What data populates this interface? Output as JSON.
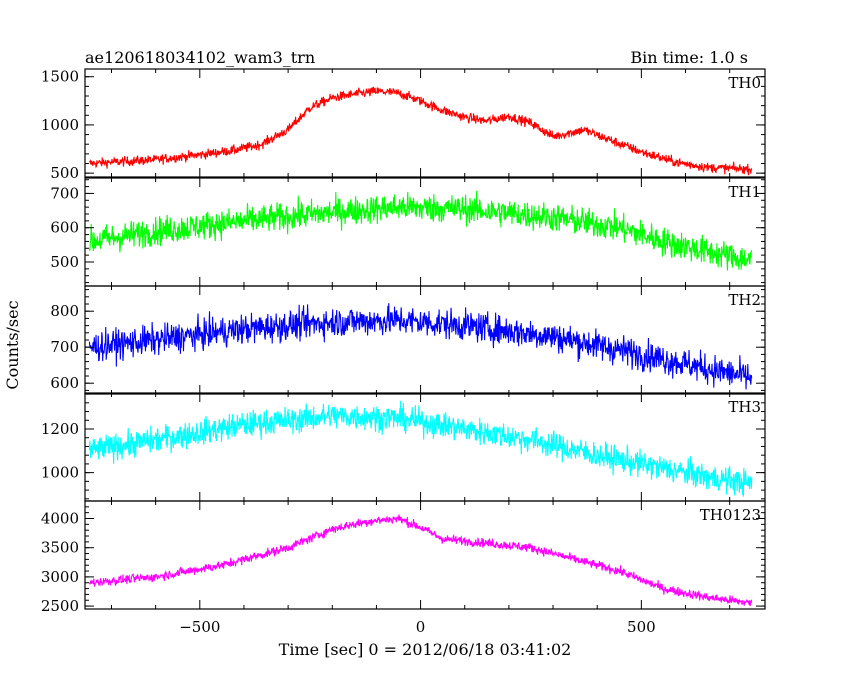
{
  "header": {
    "title": "ae120618034102_wam3_trn",
    "bin_time": "Bin time: 1.0 s"
  },
  "axes": {
    "xlabel": "Time [sec] 0 = 2012/06/18 03:41:02",
    "ylabel": "Counts/sec"
  },
  "chart_data": {
    "type": "line",
    "title": "ae120618034102_wam3_trn",
    "xlabel": "Time [sec] 0 = 2012/06/18 03:41:02",
    "ylabel": "Counts/sec",
    "xlim": [
      -760,
      780
    ],
    "xticks": [
      "−500",
      "0",
      "500"
    ],
    "x_tick_values": [
      -500,
      0,
      500
    ],
    "x_range_data": [
      -750,
      750
    ],
    "grid": false,
    "panels": [
      {
        "name": "TH0",
        "color": "#ff0000",
        "ylim": [
          460,
          1580
        ],
        "yticks": [
          500,
          1000,
          1500
        ],
        "noise": 45,
        "profile": [
          [
            -750,
            600
          ],
          [
            -600,
            640
          ],
          [
            -500,
            690
          ],
          [
            -420,
            740
          ],
          [
            -360,
            800
          ],
          [
            -300,
            950
          ],
          [
            -250,
            1180
          ],
          [
            -200,
            1280
          ],
          [
            -150,
            1320
          ],
          [
            -100,
            1350
          ],
          [
            -50,
            1330
          ],
          [
            0,
            1250
          ],
          [
            50,
            1150
          ],
          [
            100,
            1080
          ],
          [
            150,
            1040
          ],
          [
            200,
            1090
          ],
          [
            250,
            1020
          ],
          [
            300,
            880
          ],
          [
            370,
            950
          ],
          [
            420,
            860
          ],
          [
            500,
            720
          ],
          [
            580,
            610
          ],
          [
            650,
            560
          ],
          [
            750,
            540
          ]
        ]
      },
      {
        "name": "TH1",
        "color": "#00ff00",
        "ylim": [
          430,
          745
        ],
        "yticks": [
          500,
          600,
          700
        ],
        "noise": 38,
        "profile": [
          [
            -750,
            560
          ],
          [
            -600,
            590
          ],
          [
            -400,
            620
          ],
          [
            -200,
            645
          ],
          [
            -50,
            660
          ],
          [
            100,
            655
          ],
          [
            300,
            630
          ],
          [
            450,
            600
          ],
          [
            550,
            560
          ],
          [
            650,
            530
          ],
          [
            750,
            505
          ]
        ]
      },
      {
        "name": "TH2",
        "color": "#0000ff",
        "ylim": [
          570,
          870
        ],
        "yticks": [
          600,
          700,
          800
        ],
        "noise": 38,
        "profile": [
          [
            -750,
            700
          ],
          [
            -600,
            720
          ],
          [
            -400,
            750
          ],
          [
            -200,
            770
          ],
          [
            -50,
            775
          ],
          [
            100,
            760
          ],
          [
            300,
            730
          ],
          [
            500,
            680
          ],
          [
            650,
            640
          ],
          [
            750,
            615
          ]
        ]
      },
      {
        "name": "TH3",
        "color": "#00ffff",
        "ylim": [
          870,
          1365
        ],
        "yticks": [
          1000,
          1200
        ],
        "noise": 55,
        "profile": [
          [
            -750,
            1100
          ],
          [
            -600,
            1150
          ],
          [
            -400,
            1220
          ],
          [
            -200,
            1260
          ],
          [
            -50,
            1250
          ],
          [
            100,
            1200
          ],
          [
            250,
            1150
          ],
          [
            400,
            1080
          ],
          [
            550,
            1020
          ],
          [
            650,
            980
          ],
          [
            750,
            950
          ]
        ]
      },
      {
        "name": "TH0123",
        "color": "#ff00ff",
        "ylim": [
          2450,
          4300
        ],
        "yticks": [
          2500,
          3000,
          3500,
          4000
        ],
        "noise": 70,
        "profile": [
          [
            -750,
            2900
          ],
          [
            -600,
            3000
          ],
          [
            -450,
            3200
          ],
          [
            -300,
            3500
          ],
          [
            -200,
            3820
          ],
          [
            -120,
            3950
          ],
          [
            -50,
            4000
          ],
          [
            0,
            3850
          ],
          [
            50,
            3650
          ],
          [
            150,
            3580
          ],
          [
            250,
            3500
          ],
          [
            350,
            3300
          ],
          [
            450,
            3100
          ],
          [
            550,
            2800
          ],
          [
            650,
            2650
          ],
          [
            750,
            2550
          ]
        ]
      }
    ]
  }
}
